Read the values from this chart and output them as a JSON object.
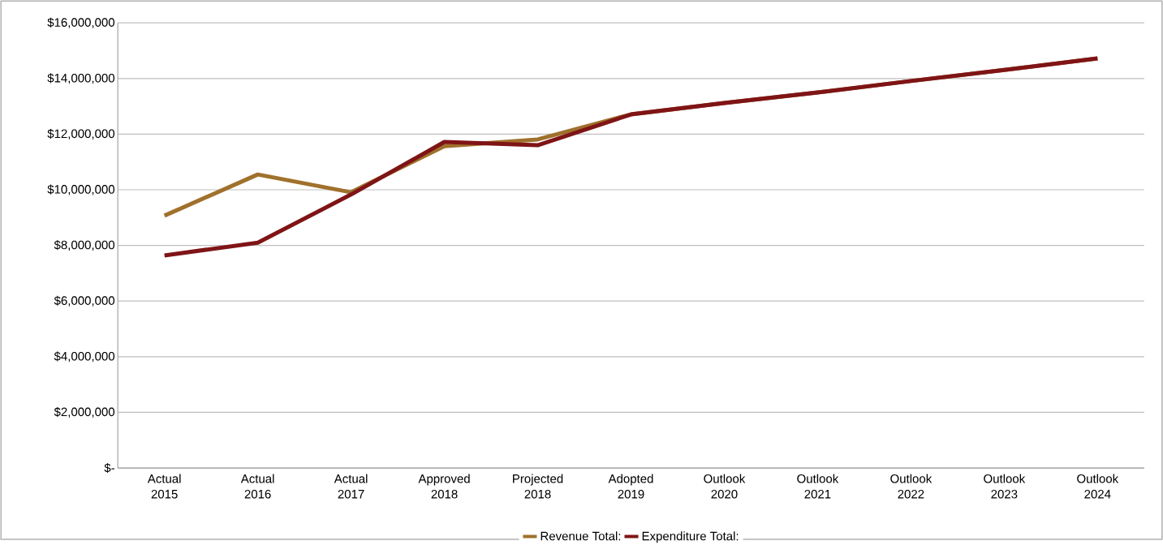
{
  "chart_data": {
    "type": "line",
    "categories": [
      "Actual 2015",
      "Actual 2016",
      "Actual 2017",
      "Approved 2018",
      "Projected 2018",
      "Adopted 2019",
      "Outlook 2020",
      "Outlook 2021",
      "Outlook 2022",
      "Outlook 2023",
      "Outlook 2024"
    ],
    "series": [
      {
        "name": "Revenue Total:",
        "color": "#a0712c",
        "values": [
          9070000,
          10550000,
          9910000,
          11570000,
          11810000,
          12710000,
          13120000,
          13500000,
          13910000,
          14310000,
          14720000
        ]
      },
      {
        "name": "Expenditure Total:",
        "color": "#7f1416",
        "values": [
          7640000,
          8100000,
          9830000,
          11720000,
          11600000,
          12710000,
          13120000,
          13500000,
          13910000,
          14310000,
          14720000
        ]
      }
    ],
    "ylim": [
      0,
      16000000
    ],
    "yticks": [
      {
        "value": 0,
        "label": "$-"
      },
      {
        "value": 2000000,
        "label": "$2,000,000"
      },
      {
        "value": 4000000,
        "label": "$4,000,000"
      },
      {
        "value": 6000000,
        "label": "$6,000,000"
      },
      {
        "value": 8000000,
        "label": "$8,000,000"
      },
      {
        "value": 10000000,
        "label": "$10,000,000"
      },
      {
        "value": 12000000,
        "label": "$12,000,000"
      },
      {
        "value": 14000000,
        "label": "$14,000,000"
      },
      {
        "value": 16000000,
        "label": "$16,000,000"
      }
    ],
    "grid": "y",
    "legend": "bottom",
    "marker": "none",
    "line_style": "solid"
  }
}
